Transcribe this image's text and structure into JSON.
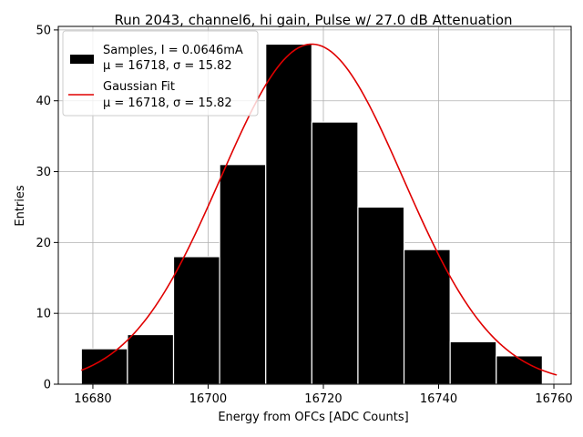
{
  "chart_data": {
    "type": "bar",
    "title": "Run 2043, channel6, hi gain, Pulse w/ 27.0 dB Attenuation",
    "xlabel": "Energy from OFCs [ADC Counts]",
    "ylabel": "Entries",
    "xlim": [
      16674,
      16763
    ],
    "ylim": [
      0,
      50.5
    ],
    "xticks": [
      16680,
      16700,
      16720,
      16740,
      16760
    ],
    "yticks": [
      0,
      10,
      20,
      30,
      40,
      50
    ],
    "grid": true,
    "legend_position": "top-left",
    "histogram": {
      "bin_edges": [
        16678,
        16686,
        16694,
        16702,
        16710,
        16718,
        16726,
        16734,
        16742,
        16750,
        16758
      ],
      "counts": [
        5,
        7,
        18,
        31,
        48,
        37,
        25,
        19,
        6,
        4
      ],
      "color": "#000000",
      "edge_color": "#ffffff"
    },
    "fit": {
      "mu": 16718,
      "sigma": 15.82,
      "amplitude": 48,
      "x_range": [
        16678,
        16760.5
      ],
      "color": "#e00000"
    },
    "legend": [
      {
        "line1": "Samples, I = 0.0646mA",
        "line2": "μ = 16718, σ = 15.82"
      },
      {
        "line1": "Gaussian Fit",
        "line2": "μ = 16718, σ = 15.82"
      }
    ]
  }
}
